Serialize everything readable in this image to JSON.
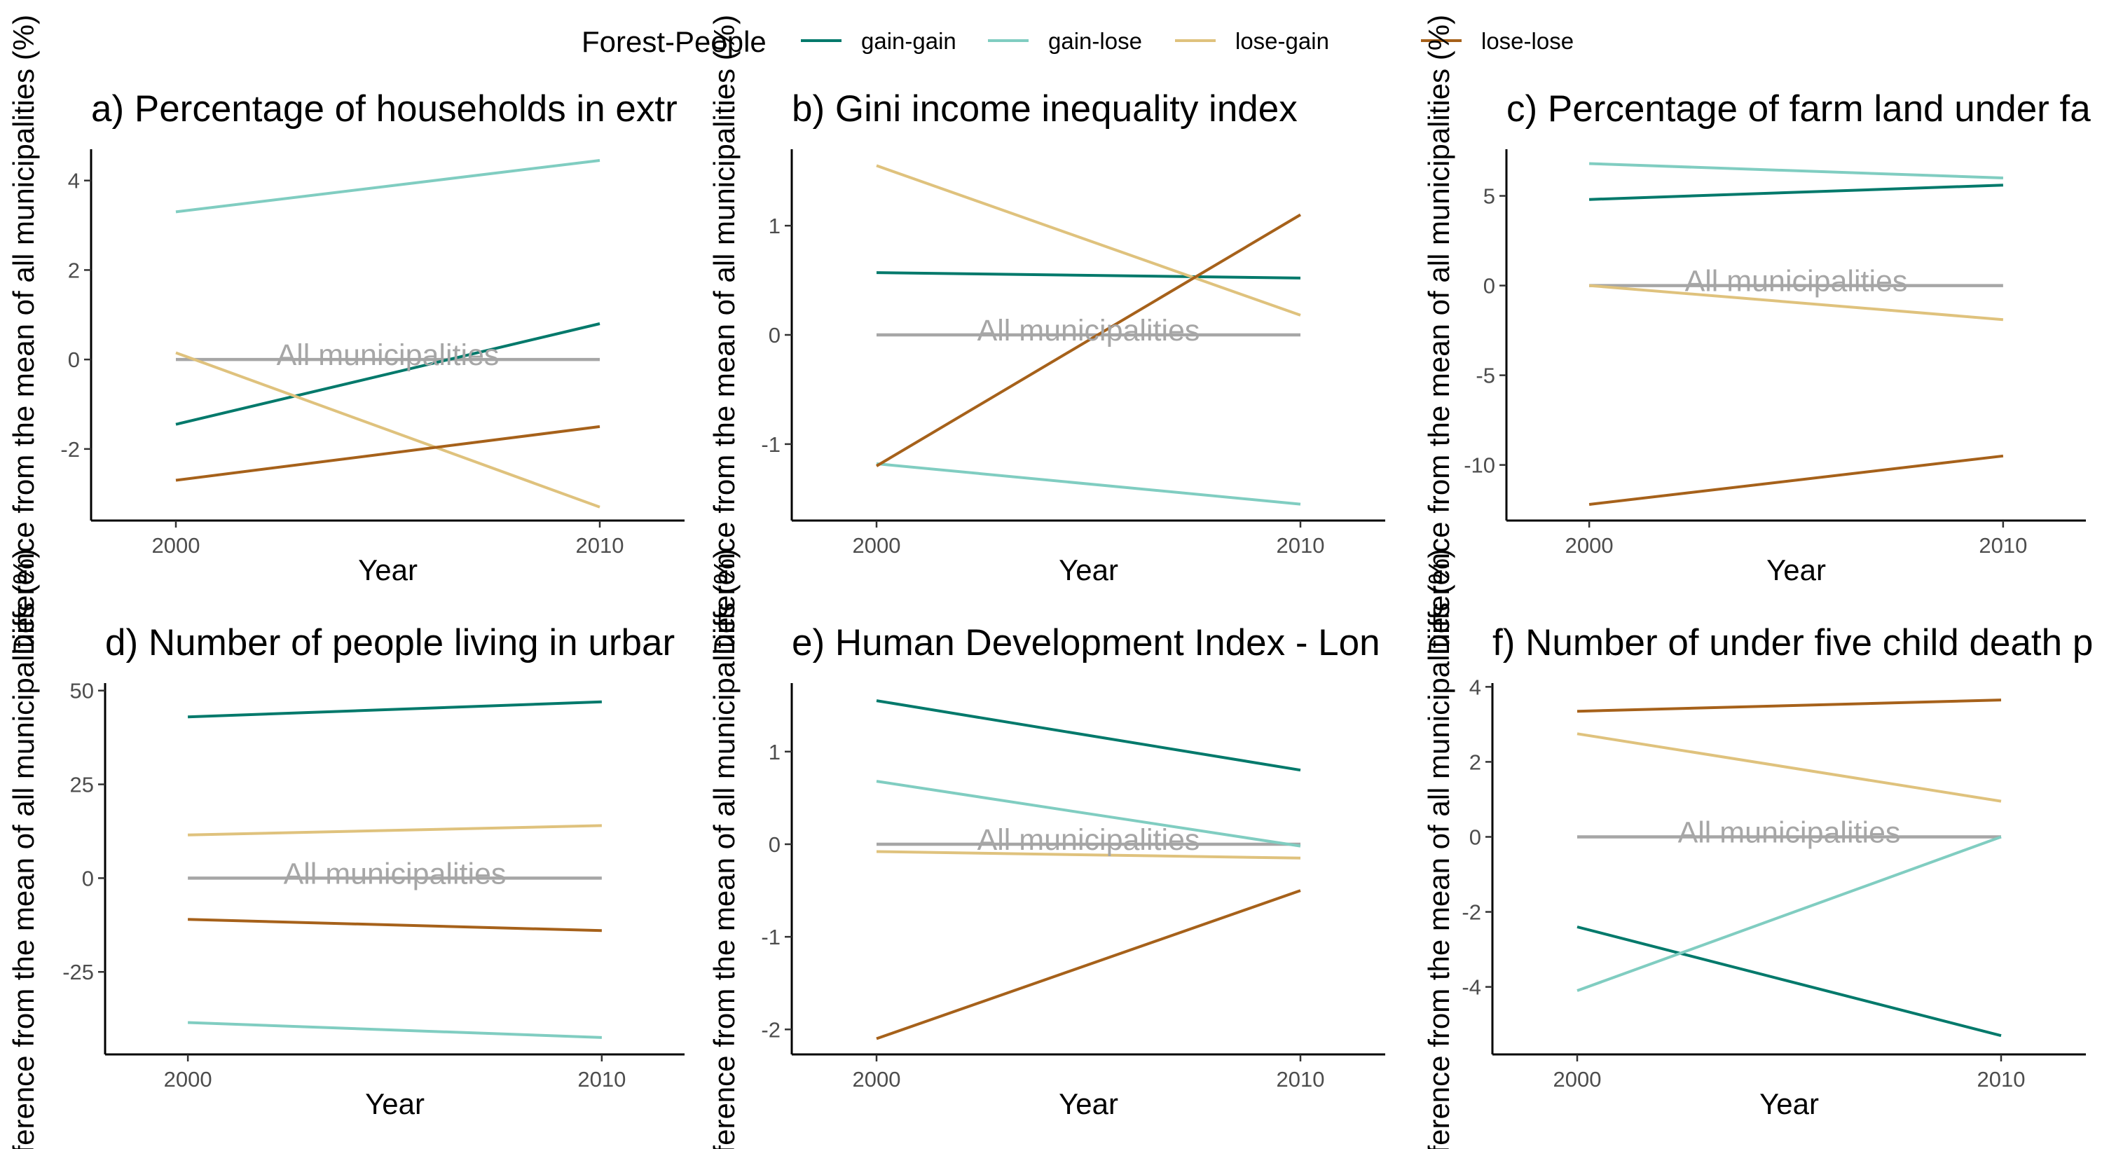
{
  "legend": {
    "title": "Forest-People",
    "entries": [
      {
        "label": "gain-gain",
        "color": "#01796b"
      },
      {
        "label": "gain-lose",
        "color": "#80cdc1"
      },
      {
        "label": "lose-gain",
        "color": "#dfc27d"
      },
      {
        "label": "lose-lose",
        "color": "#a6611a"
      }
    ]
  },
  "colors": {
    "reference": "#a6a6a6",
    "axis": "#000000"
  },
  "chart_data": [
    {
      "type": "line",
      "title": "a) Percentage of households in extr",
      "xlabel": "Year",
      "ylabel": "Difference from the mean of all municipalities (%)",
      "x": [
        2000,
        2010
      ],
      "xticks": [
        "2000",
        "2010"
      ],
      "xlim": [
        1998,
        2012
      ],
      "ylim": [
        -3.6,
        4.7
      ],
      "yticks": [
        {
          "value": 4,
          "label": "4"
        },
        {
          "value": 2,
          "label": "2"
        },
        {
          "value": 0,
          "label": "0"
        },
        {
          "value": -2,
          "label": "-2"
        }
      ],
      "reference": {
        "label": "All municipalities",
        "value": 0
      },
      "series": [
        {
          "name": "gain-gain",
          "values": [
            -1.45,
            0.8
          ]
        },
        {
          "name": "gain-lose",
          "values": [
            3.3,
            4.45
          ]
        },
        {
          "name": "lose-gain",
          "values": [
            0.15,
            -3.3
          ]
        },
        {
          "name": "lose-lose",
          "values": [
            -2.7,
            -1.5
          ]
        }
      ]
    },
    {
      "type": "line",
      "title": "b) Gini income inequality index",
      "xlabel": "Year",
      "ylabel": "Difference from the mean of all municipalities (%)",
      "x": [
        2000,
        2010
      ],
      "xticks": [
        "2000",
        "2010"
      ],
      "xlim": [
        1998,
        2012
      ],
      "ylim": [
        -1.7,
        1.7
      ],
      "yticks": [
        {
          "value": 1,
          "label": "1"
        },
        {
          "value": 0,
          "label": "0"
        },
        {
          "value": -1,
          "label": "-1"
        }
      ],
      "reference": {
        "label": "All municipalities",
        "value": 0
      },
      "series": [
        {
          "name": "gain-gain",
          "values": [
            0.57,
            0.52
          ]
        },
        {
          "name": "gain-lose",
          "values": [
            -1.18,
            -1.55
          ]
        },
        {
          "name": "lose-gain",
          "values": [
            1.55,
            0.18
          ]
        },
        {
          "name": "lose-lose",
          "values": [
            -1.2,
            1.1
          ]
        }
      ]
    },
    {
      "type": "line",
      "title": "c) Percentage of farm land under fa",
      "xlabel": "Year",
      "ylabel": "Difference from the mean of all municipalities (%)",
      "x": [
        2000,
        2010
      ],
      "xticks": [
        "2000",
        "2010"
      ],
      "xlim": [
        1998,
        2012
      ],
      "ylim": [
        -13.1,
        7.6
      ],
      "yticks": [
        {
          "value": 5,
          "label": "5"
        },
        {
          "value": 0,
          "label": "0"
        },
        {
          "value": -5,
          "label": "-5"
        },
        {
          "value": -10,
          "label": "-10"
        }
      ],
      "reference": {
        "label": "All municipalities",
        "value": 0
      },
      "series": [
        {
          "name": "gain-gain",
          "values": [
            4.8,
            5.6
          ]
        },
        {
          "name": "gain-lose",
          "values": [
            6.8,
            6.0
          ]
        },
        {
          "name": "lose-gain",
          "values": [
            0.0,
            -1.9
          ]
        },
        {
          "name": "lose-lose",
          "values": [
            -12.2,
            -9.5
          ]
        }
      ]
    },
    {
      "type": "line",
      "title": "d) Number of people living in urbar",
      "xlabel": "Year",
      "ylabel": "Difference from the mean of all municipalities (%)",
      "x": [
        2000,
        2010
      ],
      "xticks": [
        "2000",
        "2010"
      ],
      "xlim": [
        1998,
        2012
      ],
      "ylim": [
        -47,
        52
      ],
      "yticks": [
        {
          "value": 50,
          "label": "50"
        },
        {
          "value": 25,
          "label": "25"
        },
        {
          "value": 0,
          "label": "0"
        },
        {
          "value": -25,
          "label": "-25"
        }
      ],
      "reference": {
        "label": "All municipalities",
        "value": 0
      },
      "series": [
        {
          "name": "gain-gain",
          "values": [
            43,
            47
          ]
        },
        {
          "name": "gain-lose",
          "values": [
            -38.5,
            -42.5
          ]
        },
        {
          "name": "lose-gain",
          "values": [
            11.5,
            14
          ]
        },
        {
          "name": "lose-lose",
          "values": [
            -11,
            -14
          ]
        }
      ]
    },
    {
      "type": "line",
      "title": "e) Human Development Index - Lon",
      "xlabel": "Year",
      "ylabel": "Difference from the mean of all municipalities (%)",
      "x": [
        2000,
        2010
      ],
      "xticks": [
        "2000",
        "2010"
      ],
      "xlim": [
        1998,
        2012
      ],
      "ylim": [
        -2.27,
        1.74
      ],
      "yticks": [
        {
          "value": 1,
          "label": "1"
        },
        {
          "value": 0,
          "label": "0"
        },
        {
          "value": -1,
          "label": "-1"
        },
        {
          "value": -2,
          "label": "-2"
        }
      ],
      "reference": {
        "label": "All municipalities",
        "value": 0
      },
      "series": [
        {
          "name": "gain-gain",
          "values": [
            1.55,
            0.8
          ]
        },
        {
          "name": "gain-lose",
          "values": [
            0.68,
            -0.02
          ]
        },
        {
          "name": "lose-gain",
          "values": [
            -0.08,
            -0.15
          ]
        },
        {
          "name": "lose-lose",
          "values": [
            -2.1,
            -0.5
          ]
        }
      ]
    },
    {
      "type": "line",
      "title": "f) Number of under five child death p",
      "xlabel": "Year",
      "ylabel": "Difference from the mean of all municipalities (%)",
      "x": [
        2000,
        2010
      ],
      "xticks": [
        "2000",
        "2010"
      ],
      "xlim": [
        1998,
        2012
      ],
      "ylim": [
        -5.8,
        4.1
      ],
      "yticks": [
        {
          "value": 4,
          "label": "4"
        },
        {
          "value": 2,
          "label": "2"
        },
        {
          "value": 0,
          "label": "0"
        },
        {
          "value": -2,
          "label": "-2"
        },
        {
          "value": -4,
          "label": "-4"
        }
      ],
      "reference": {
        "label": "All municipalities",
        "value": 0
      },
      "series": [
        {
          "name": "gain-gain",
          "values": [
            -2.4,
            -5.3
          ]
        },
        {
          "name": "gain-lose",
          "values": [
            -4.1,
            0.0
          ]
        },
        {
          "name": "lose-gain",
          "values": [
            2.75,
            0.95
          ]
        },
        {
          "name": "lose-lose",
          "values": [
            3.35,
            3.65
          ]
        }
      ]
    }
  ]
}
